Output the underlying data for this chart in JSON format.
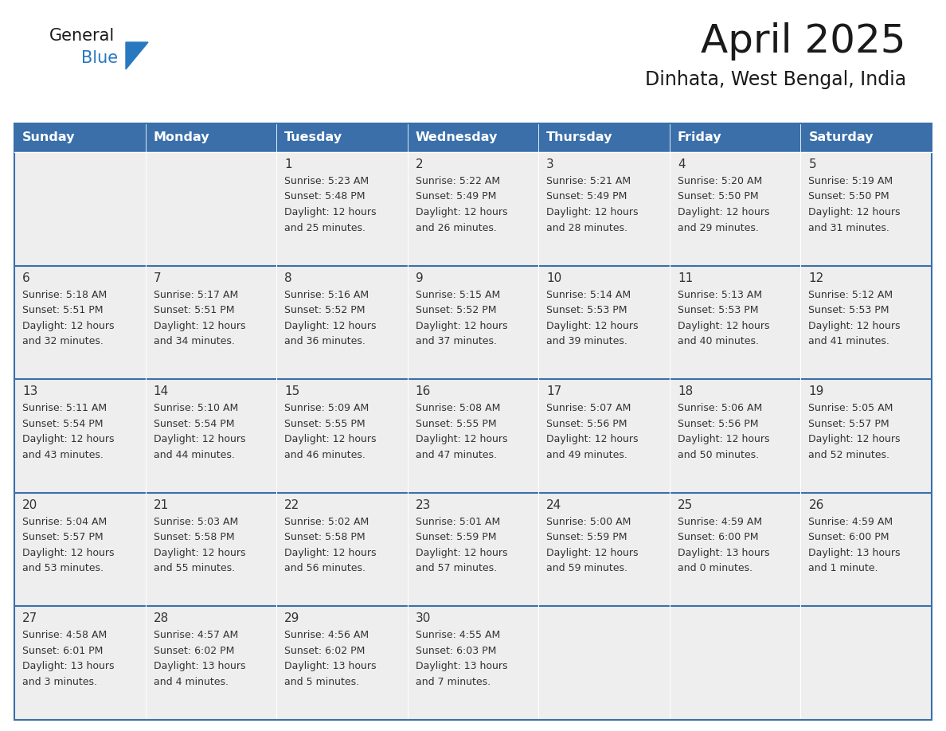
{
  "title": "April 2025",
  "subtitle": "Dinhata, West Bengal, India",
  "days_of_week": [
    "Sunday",
    "Monday",
    "Tuesday",
    "Wednesday",
    "Thursday",
    "Friday",
    "Saturday"
  ],
  "header_bg": "#3a6faa",
  "header_text": "#ffffff",
  "cell_bg": "#eeeeee",
  "cell_bg_empty": "#e8e8e8",
  "border_color": "#3a6faa",
  "row_sep_color": "#3a6faa",
  "text_color": "#333333",
  "day_num_color": "#333333",
  "logo_general_color": "#1a1a1a",
  "logo_blue_color": "#2878c0",
  "title_color": "#1a1a1a",
  "subtitle_color": "#1a1a1a",
  "calendar_data": [
    [
      {
        "day": null,
        "sunrise": null,
        "sunset": null,
        "daylight": null
      },
      {
        "day": null,
        "sunrise": null,
        "sunset": null,
        "daylight": null
      },
      {
        "day": 1,
        "sunrise": "5:23 AM",
        "sunset": "5:48 PM",
        "daylight": "12 hours and 25 minutes."
      },
      {
        "day": 2,
        "sunrise": "5:22 AM",
        "sunset": "5:49 PM",
        "daylight": "12 hours and 26 minutes."
      },
      {
        "day": 3,
        "sunrise": "5:21 AM",
        "sunset": "5:49 PM",
        "daylight": "12 hours and 28 minutes."
      },
      {
        "day": 4,
        "sunrise": "5:20 AM",
        "sunset": "5:50 PM",
        "daylight": "12 hours and 29 minutes."
      },
      {
        "day": 5,
        "sunrise": "5:19 AM",
        "sunset": "5:50 PM",
        "daylight": "12 hours and 31 minutes."
      }
    ],
    [
      {
        "day": 6,
        "sunrise": "5:18 AM",
        "sunset": "5:51 PM",
        "daylight": "12 hours and 32 minutes."
      },
      {
        "day": 7,
        "sunrise": "5:17 AM",
        "sunset": "5:51 PM",
        "daylight": "12 hours and 34 minutes."
      },
      {
        "day": 8,
        "sunrise": "5:16 AM",
        "sunset": "5:52 PM",
        "daylight": "12 hours and 36 minutes."
      },
      {
        "day": 9,
        "sunrise": "5:15 AM",
        "sunset": "5:52 PM",
        "daylight": "12 hours and 37 minutes."
      },
      {
        "day": 10,
        "sunrise": "5:14 AM",
        "sunset": "5:53 PM",
        "daylight": "12 hours and 39 minutes."
      },
      {
        "day": 11,
        "sunrise": "5:13 AM",
        "sunset": "5:53 PM",
        "daylight": "12 hours and 40 minutes."
      },
      {
        "day": 12,
        "sunrise": "5:12 AM",
        "sunset": "5:53 PM",
        "daylight": "12 hours and 41 minutes."
      }
    ],
    [
      {
        "day": 13,
        "sunrise": "5:11 AM",
        "sunset": "5:54 PM",
        "daylight": "12 hours and 43 minutes."
      },
      {
        "day": 14,
        "sunrise": "5:10 AM",
        "sunset": "5:54 PM",
        "daylight": "12 hours and 44 minutes."
      },
      {
        "day": 15,
        "sunrise": "5:09 AM",
        "sunset": "5:55 PM",
        "daylight": "12 hours and 46 minutes."
      },
      {
        "day": 16,
        "sunrise": "5:08 AM",
        "sunset": "5:55 PM",
        "daylight": "12 hours and 47 minutes."
      },
      {
        "day": 17,
        "sunrise": "5:07 AM",
        "sunset": "5:56 PM",
        "daylight": "12 hours and 49 minutes."
      },
      {
        "day": 18,
        "sunrise": "5:06 AM",
        "sunset": "5:56 PM",
        "daylight": "12 hours and 50 minutes."
      },
      {
        "day": 19,
        "sunrise": "5:05 AM",
        "sunset": "5:57 PM",
        "daylight": "12 hours and 52 minutes."
      }
    ],
    [
      {
        "day": 20,
        "sunrise": "5:04 AM",
        "sunset": "5:57 PM",
        "daylight": "12 hours and 53 minutes."
      },
      {
        "day": 21,
        "sunrise": "5:03 AM",
        "sunset": "5:58 PM",
        "daylight": "12 hours and 55 minutes."
      },
      {
        "day": 22,
        "sunrise": "5:02 AM",
        "sunset": "5:58 PM",
        "daylight": "12 hours and 56 minutes."
      },
      {
        "day": 23,
        "sunrise": "5:01 AM",
        "sunset": "5:59 PM",
        "daylight": "12 hours and 57 minutes."
      },
      {
        "day": 24,
        "sunrise": "5:00 AM",
        "sunset": "5:59 PM",
        "daylight": "12 hours and 59 minutes."
      },
      {
        "day": 25,
        "sunrise": "4:59 AM",
        "sunset": "6:00 PM",
        "daylight": "13 hours and 0 minutes."
      },
      {
        "day": 26,
        "sunrise": "4:59 AM",
        "sunset": "6:00 PM",
        "daylight": "13 hours and 1 minute."
      }
    ],
    [
      {
        "day": 27,
        "sunrise": "4:58 AM",
        "sunset": "6:01 PM",
        "daylight": "13 hours and 3 minutes."
      },
      {
        "day": 28,
        "sunrise": "4:57 AM",
        "sunset": "6:02 PM",
        "daylight": "13 hours and 4 minutes."
      },
      {
        "day": 29,
        "sunrise": "4:56 AM",
        "sunset": "6:02 PM",
        "daylight": "13 hours and 5 minutes."
      },
      {
        "day": 30,
        "sunrise": "4:55 AM",
        "sunset": "6:03 PM",
        "daylight": "13 hours and 7 minutes."
      },
      {
        "day": null,
        "sunrise": null,
        "sunset": null,
        "daylight": null
      },
      {
        "day": null,
        "sunrise": null,
        "sunset": null,
        "daylight": null
      },
      {
        "day": null,
        "sunrise": null,
        "sunset": null,
        "daylight": null
      }
    ]
  ]
}
